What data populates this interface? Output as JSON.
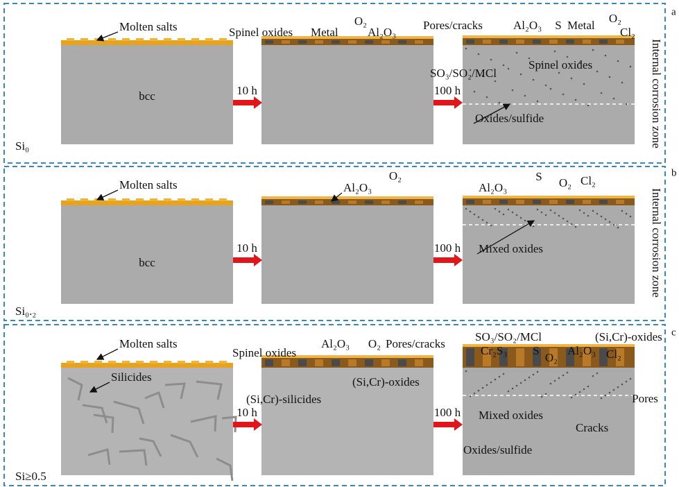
{
  "panels": [
    {
      "label": "a",
      "alloy": "Si₀",
      "durations": [
        "10 h",
        "100 h"
      ],
      "side_label": "Internal corrosion zone",
      "annotations": [
        "Molten salts",
        "bcc",
        "Spinel oxides",
        "Metal",
        "O₂",
        "Al₂O₃",
        "Pores/cracks",
        "Al₂O₃",
        "S",
        "Metal",
        "O₂",
        "Cl₂",
        "SO₃/SO₂/MCl",
        "Spinel oxides",
        "Oxides/sulfide"
      ]
    },
    {
      "label": "b",
      "alloy": "Si₀.₂",
      "durations": [
        "10 h",
        "100 h"
      ],
      "side_label": "Internal corrosion zone",
      "annotations": [
        "Molten salts",
        "bcc",
        "Al₂O₃",
        "O₂",
        "Al₂O₃",
        "S",
        "O₂",
        "Cl₂",
        "Mixed oxides"
      ]
    },
    {
      "label": "c",
      "alloy": "Si≥0.5",
      "durations": [
        "10 h",
        "100 h"
      ],
      "annotations": [
        "Molten salts",
        "Silicides",
        "Spinel oxides",
        "Al₂O₃",
        "O₂",
        "Pores/cracks",
        "(Si,Cr)-oxides",
        "(Si,Cr)-silicides",
        "SO₃/SO₂/MCl",
        "Cr₂S₃",
        "(Si,Cr)-oxides",
        "S",
        "O₂",
        "Al₂O₃",
        "Cl₂",
        "Pores",
        "Mixed oxides",
        "Cracks",
        "Oxides/sulfide"
      ]
    }
  ]
}
